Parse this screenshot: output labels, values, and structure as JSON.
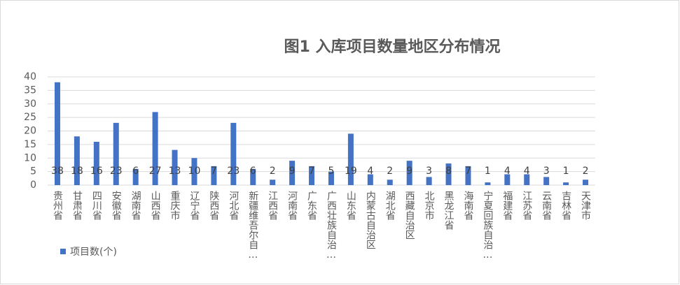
{
  "chart_data": {
    "type": "bar",
    "title": "图1 入库项目数量地区分布情况",
    "categories": [
      "贵州省",
      "甘肃省",
      "四川省",
      "安徽省",
      "湖南省",
      "山西省",
      "重庆市",
      "辽宁省",
      "陕西省",
      "河北省",
      "新疆维吾尔自…",
      "江西省",
      "河南省",
      "广东省",
      "广西壮族自治…",
      "山东省",
      "内蒙古自治区",
      "湖北省",
      "西藏自治区",
      "北京市",
      "黑龙江省",
      "海南省",
      "宁夏回族自治…",
      "福建省",
      "江苏省",
      "云南省",
      "吉林省",
      "天津市"
    ],
    "series": [
      {
        "name": "项目数(个)",
        "color": "#4472c4",
        "values": [
          38,
          18,
          16,
          23,
          6,
          27,
          13,
          10,
          7,
          23,
          6,
          2,
          9,
          7,
          5,
          19,
          4,
          2,
          9,
          3,
          8,
          7,
          1,
          4,
          4,
          3,
          1,
          2
        ]
      }
    ],
    "ylim": [
      0,
      40
    ],
    "yticks": [
      0,
      5,
      10,
      15,
      20,
      25,
      30,
      35,
      40
    ],
    "grid": true,
    "legend": "bottom-left"
  }
}
